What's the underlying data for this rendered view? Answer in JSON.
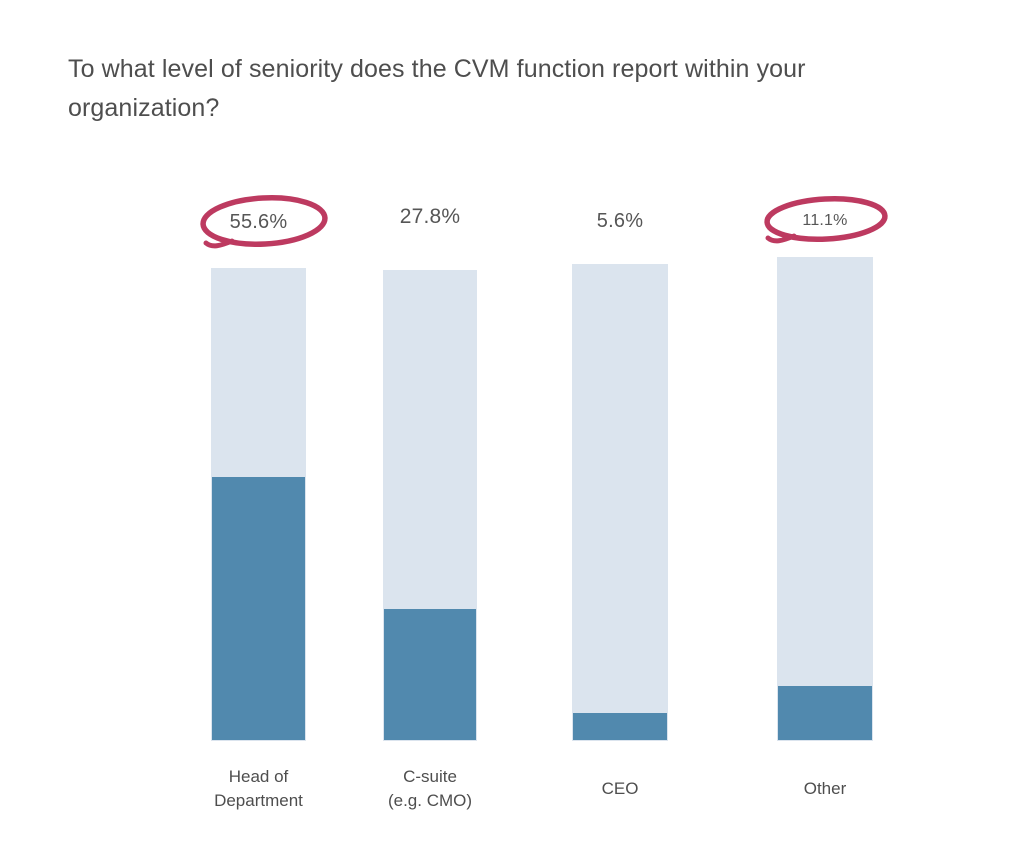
{
  "page": {
    "background": "#ffffff"
  },
  "title": {
    "text": "To what level of seniority does the CVM function report within your organization?",
    "lines": [
      "To what level of seniority does the CVM function report within your",
      "organization?"
    ]
  },
  "colors": {
    "bar_fill": "#5189ae",
    "bar_track": "#dbe4ee",
    "annotation_circle": "#bd3a60",
    "title_text": "#4e4e4e",
    "label_text": "#565656"
  },
  "chart_data": {
    "type": "bar",
    "title": "To what level of seniority does the CVM function report within your organization?",
    "categories": [
      "Head of Department",
      "C-suite (e.g. CMO)",
      "CEO",
      "Other"
    ],
    "category_lines": [
      [
        "Head of",
        "Department"
      ],
      [
        "C-suite",
        "(e.g. CMO)"
      ],
      [
        "CEO"
      ],
      [
        "Other"
      ]
    ],
    "values": [
      55.6,
      27.8,
      5.6,
      11.1
    ],
    "value_labels": [
      "55.6%",
      "27.8%",
      "5.6%",
      "11.1%"
    ],
    "unit": "%",
    "ylim": [
      0,
      100
    ],
    "grid": false,
    "legend": false,
    "xlabel": "",
    "ylabel": "",
    "highlighted_indices": [
      0,
      3
    ],
    "highlighted_categories": [
      "Head of Department",
      "Other"
    ],
    "highlight_style": "hand-drawn red circle around value label"
  }
}
